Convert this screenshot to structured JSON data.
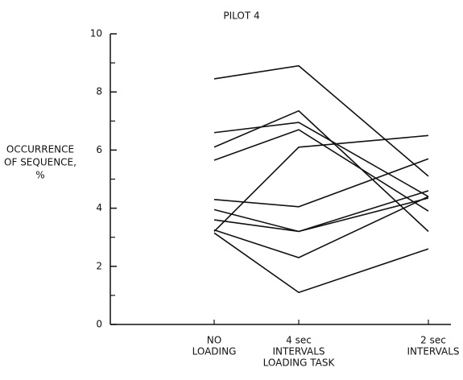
{
  "chart_data": {
    "type": "line",
    "title": "PILOT 4",
    "y_label": [
      "OCCURRENCE",
      "OF SEQUENCE,",
      "%"
    ],
    "categories": [
      [
        "NO",
        "LOADING"
      ],
      [
        "4 sec",
        "INTERVALS",
        "LOADING TASK"
      ],
      [
        "2 sec",
        "INTERVALS"
      ]
    ],
    "color": "#111111",
    "series": [
      {
        "values": [
          8.45,
          8.9,
          5.1
        ]
      },
      {
        "values": [
          6.6,
          6.95,
          4.4
        ]
      },
      {
        "values": [
          6.1,
          7.35,
          3.2
        ]
      },
      {
        "values": [
          5.65,
          6.7,
          3.9
        ]
      },
      {
        "values": [
          4.3,
          4.05,
          5.7
        ]
      },
      {
        "values": [
          3.95,
          3.2,
          4.35
        ]
      },
      {
        "values": [
          3.6,
          3.2,
          4.6
        ]
      },
      {
        "values": [
          3.2,
          6.1,
          6.5
        ]
      },
      {
        "values": [
          3.25,
          2.3,
          4.4
        ]
      },
      {
        "values": [
          3.15,
          1.1,
          2.6
        ]
      }
    ],
    "ylim": [
      0,
      10
    ],
    "yticks": [
      0,
      2,
      4,
      6,
      8,
      10
    ],
    "yminorticks": [
      1,
      3,
      5,
      7,
      9
    ],
    "grid": false
  }
}
